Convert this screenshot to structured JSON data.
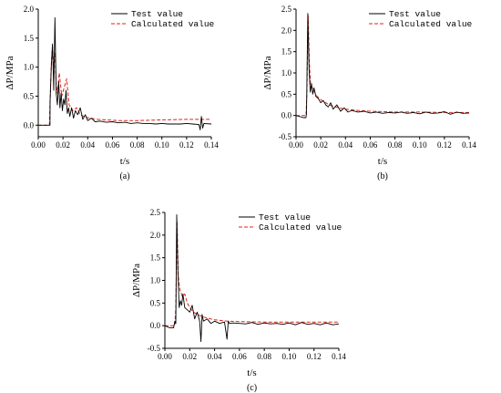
{
  "chart_data": [
    {
      "type": "line",
      "panel": "(a)",
      "xlabel": "t/s",
      "ylabel": "ΔP/MPa",
      "xlim": [
        0.0,
        0.14
      ],
      "ylim": [
        -0.2,
        2.0
      ],
      "xticks": [
        "0.00",
        "0.02",
        "0.04",
        "0.06",
        "0.08",
        "0.10",
        "0.12",
        "0.14"
      ],
      "yticks": [
        "0.0",
        "0.5",
        "1.0",
        "1.5",
        "2.0"
      ],
      "legend_position": "top-right",
      "series": [
        {
          "name": "Test value",
          "color": "#000000",
          "x": [
            0.0,
            0.008,
            0.0095,
            0.0096,
            0.0105,
            0.0115,
            0.0125,
            0.0135,
            0.0145,
            0.0155,
            0.0165,
            0.0175,
            0.0185,
            0.0195,
            0.0205,
            0.0215,
            0.0225,
            0.0235,
            0.0245,
            0.0255,
            0.027,
            0.0285,
            0.03,
            0.032,
            0.034,
            0.036,
            0.038,
            0.04,
            0.043,
            0.046,
            0.05,
            0.055,
            0.06,
            0.065,
            0.07,
            0.075,
            0.08,
            0.085,
            0.09,
            0.095,
            0.1,
            0.105,
            0.11,
            0.115,
            0.12,
            0.125,
            0.13,
            0.131,
            0.132,
            0.133,
            0.134,
            0.14
          ],
          "y": [
            0.0,
            0.0,
            0.0,
            0.4,
            1.0,
            1.4,
            0.6,
            1.85,
            0.55,
            0.35,
            0.75,
            0.3,
            0.55,
            0.25,
            0.45,
            0.35,
            0.6,
            0.2,
            0.3,
            0.15,
            0.3,
            0.12,
            0.25,
            0.18,
            0.3,
            0.1,
            0.18,
            0.08,
            0.12,
            0.06,
            0.07,
            0.05,
            0.06,
            0.04,
            0.05,
            0.03,
            0.04,
            0.03,
            0.03,
            0.02,
            0.03,
            0.02,
            0.02,
            0.02,
            0.03,
            0.02,
            0.01,
            -0.08,
            0.15,
            -0.05,
            0.03,
            0.02
          ]
        },
        {
          "name": "Calculated value",
          "color": "#e0241a",
          "dashed": true,
          "x": [
            0.0,
            0.009,
            0.0096,
            0.0105,
            0.0115,
            0.0125,
            0.0135,
            0.0145,
            0.0155,
            0.017,
            0.019,
            0.021,
            0.023,
            0.025,
            0.028,
            0.031,
            0.034,
            0.038,
            0.042,
            0.048,
            0.055,
            0.065,
            0.08,
            0.1,
            0.12,
            0.14
          ],
          "y": [
            0.0,
            0.0,
            0.45,
            1.05,
            1.35,
            1.0,
            1.25,
            0.7,
            0.55,
            0.9,
            0.5,
            0.65,
            0.8,
            0.35,
            0.25,
            0.3,
            0.18,
            0.14,
            0.12,
            0.1,
            0.09,
            0.08,
            0.08,
            0.09,
            0.1,
            0.1
          ]
        }
      ]
    },
    {
      "type": "line",
      "panel": "(b)",
      "xlabel": "t/s",
      "ylabel": "ΔP/MPa",
      "xlim": [
        0.0,
        0.14
      ],
      "ylim": [
        -0.5,
        2.5
      ],
      "xticks": [
        "0.00",
        "0.02",
        "0.04",
        "0.06",
        "0.08",
        "0.10",
        "0.12",
        "0.14"
      ],
      "yticks": [
        "-0.5",
        "0.0",
        "0.5",
        "1.0",
        "1.5",
        "2.0",
        "2.5"
      ],
      "legend_position": "top-right",
      "series": [
        {
          "name": "Test value",
          "color": "#000000",
          "x": [
            0.0,
            0.006,
            0.008,
            0.0085,
            0.0095,
            0.0105,
            0.0115,
            0.0125,
            0.0135,
            0.0145,
            0.016,
            0.018,
            0.02,
            0.022,
            0.024,
            0.026,
            0.028,
            0.03,
            0.033,
            0.036,
            0.039,
            0.042,
            0.045,
            0.05,
            0.055,
            0.06,
            0.065,
            0.07,
            0.075,
            0.08,
            0.085,
            0.09,
            0.095,
            0.1,
            0.105,
            0.11,
            0.115,
            0.12,
            0.125,
            0.13,
            0.135,
            0.14
          ],
          "y": [
            0.0,
            -0.05,
            -0.05,
            0.05,
            2.4,
            1.1,
            0.55,
            0.75,
            0.5,
            0.65,
            0.45,
            0.4,
            0.3,
            0.35,
            0.25,
            0.2,
            0.3,
            0.15,
            0.25,
            0.1,
            0.18,
            0.08,
            0.12,
            0.08,
            0.1,
            0.06,
            0.08,
            0.05,
            0.07,
            0.06,
            0.08,
            0.05,
            0.07,
            0.04,
            0.08,
            0.05,
            0.06,
            0.09,
            0.03,
            0.08,
            0.05,
            0.06
          ]
        },
        {
          "name": "Calculated value",
          "color": "#e0241a",
          "dashed": true,
          "x": [
            0.0,
            0.008,
            0.0088,
            0.0098,
            0.0108,
            0.0118,
            0.013,
            0.015,
            0.017,
            0.019,
            0.021,
            0.024,
            0.027,
            0.03,
            0.035,
            0.04,
            0.05,
            0.06,
            0.08,
            0.1,
            0.12,
            0.14
          ],
          "y": [
            0.0,
            0.0,
            0.5,
            2.35,
            1.2,
            0.7,
            0.65,
            0.55,
            0.45,
            0.4,
            0.35,
            0.3,
            0.25,
            0.22,
            0.18,
            0.15,
            0.12,
            0.1,
            0.08,
            0.08,
            0.07,
            0.07
          ]
        }
      ]
    },
    {
      "type": "line",
      "panel": "(c)",
      "xlabel": "t/s",
      "ylabel": "ΔP/MPa",
      "xlim": [
        0.0,
        0.14
      ],
      "ylim": [
        -0.5,
        2.5
      ],
      "xticks": [
        "0.00",
        "0.02",
        "0.04",
        "0.06",
        "0.08",
        "0.10",
        "0.12",
        "0.14"
      ],
      "yticks": [
        "-0.5",
        "0.0",
        "0.5",
        "1.0",
        "1.5",
        "2.0",
        "2.5"
      ],
      "legend_position": "top-right",
      "series": [
        {
          "name": "Test value",
          "color": "#000000",
          "x": [
            0.0,
            0.004,
            0.007,
            0.008,
            0.0088,
            0.0095,
            0.0105,
            0.0115,
            0.0125,
            0.0135,
            0.0145,
            0.016,
            0.018,
            0.02,
            0.022,
            0.024,
            0.026,
            0.028,
            0.029,
            0.03,
            0.031,
            0.034,
            0.037,
            0.04,
            0.044,
            0.048,
            0.05,
            0.051,
            0.052,
            0.055,
            0.06,
            0.065,
            0.07,
            0.075,
            0.08,
            0.085,
            0.09,
            0.095,
            0.1,
            0.105,
            0.11,
            0.115,
            0.12,
            0.125,
            0.13,
            0.135,
            0.14
          ],
          "y": [
            0.0,
            -0.05,
            -0.05,
            0.1,
            0.05,
            2.45,
            1.2,
            0.4,
            0.55,
            0.45,
            0.7,
            0.4,
            0.35,
            0.3,
            0.45,
            0.15,
            0.3,
            0.1,
            -0.35,
            0.25,
            0.1,
            0.15,
            0.05,
            0.1,
            0.05,
            0.08,
            -0.3,
            0.1,
            0.05,
            0.06,
            0.05,
            0.04,
            0.07,
            0.03,
            0.06,
            0.04,
            0.05,
            0.03,
            0.06,
            0.02,
            0.07,
            0.03,
            0.05,
            0.02,
            0.06,
            0.02,
            0.04
          ]
        },
        {
          "name": "Calculated value",
          "color": "#e0241a",
          "dashed": true,
          "x": [
            0.0,
            0.008,
            0.0088,
            0.0098,
            0.0108,
            0.012,
            0.014,
            0.016,
            0.018,
            0.02,
            0.023,
            0.026,
            0.03,
            0.035,
            0.04,
            0.05,
            0.06,
            0.08,
            0.1,
            0.12,
            0.14
          ],
          "y": [
            0.0,
            0.0,
            0.4,
            2.3,
            1.1,
            0.8,
            0.65,
            0.7,
            0.5,
            0.4,
            0.3,
            0.25,
            0.2,
            0.16,
            0.13,
            0.1,
            0.09,
            0.08,
            0.08,
            0.08,
            0.08
          ]
        }
      ]
    }
  ]
}
